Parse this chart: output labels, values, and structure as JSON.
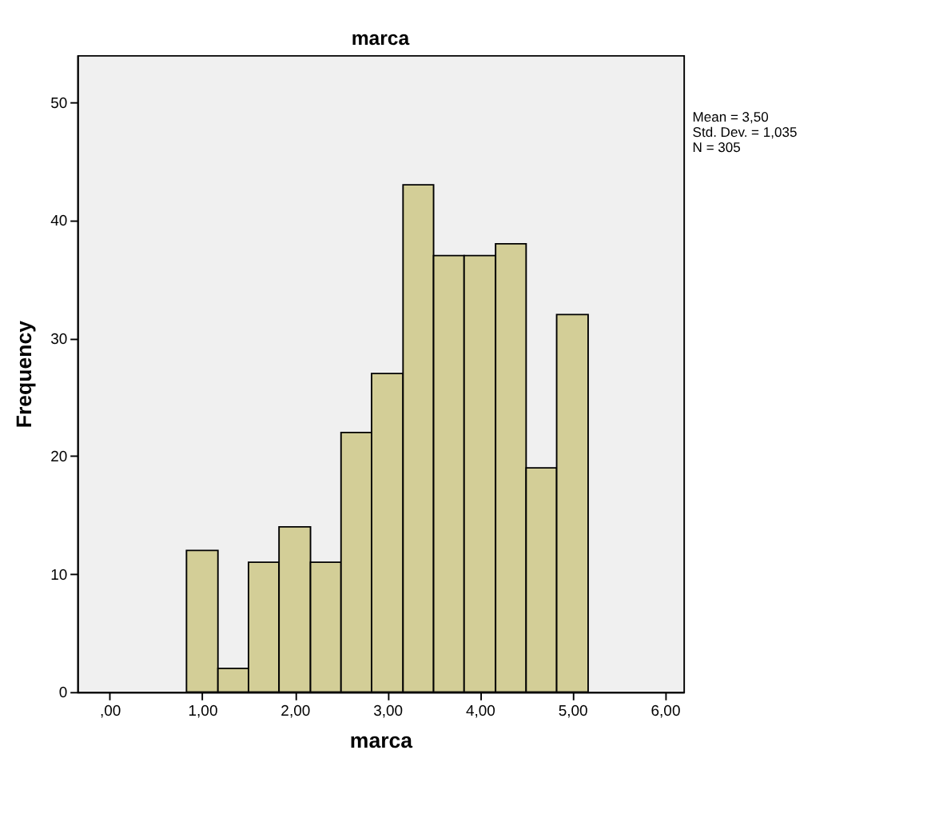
{
  "chart_data": {
    "type": "histogram",
    "title": "marca",
    "xlabel": "marca",
    "ylabel": "Frequency",
    "bins": [
      0.83,
      1.17,
      1.5,
      1.83,
      2.17,
      2.5,
      2.83,
      3.17,
      3.5,
      3.83,
      4.17,
      4.5,
      4.83,
      5.17
    ],
    "values": [
      12,
      2,
      11,
      14,
      11,
      22,
      27,
      43,
      37,
      37,
      38,
      19,
      32
    ],
    "color": "#d3ce97",
    "xlim": [
      -0.35,
      6.2
    ],
    "xticks": [
      {
        "value": 0,
        "label": ",00"
      },
      {
        "value": 1,
        "label": "1,00"
      },
      {
        "value": 2,
        "label": "2,00"
      },
      {
        "value": 3,
        "label": "3,00"
      },
      {
        "value": 4,
        "label": "4,00"
      },
      {
        "value": 5,
        "label": "5,00"
      },
      {
        "value": 6,
        "label": "6,00"
      }
    ],
    "ylim": [
      0,
      54
    ],
    "yticks": [
      0,
      10,
      20,
      30,
      40,
      50
    ],
    "grid": false,
    "annotations": [
      "Mean = 3,50",
      "Std. Dev. = 1,035",
      "N = 305"
    ]
  }
}
